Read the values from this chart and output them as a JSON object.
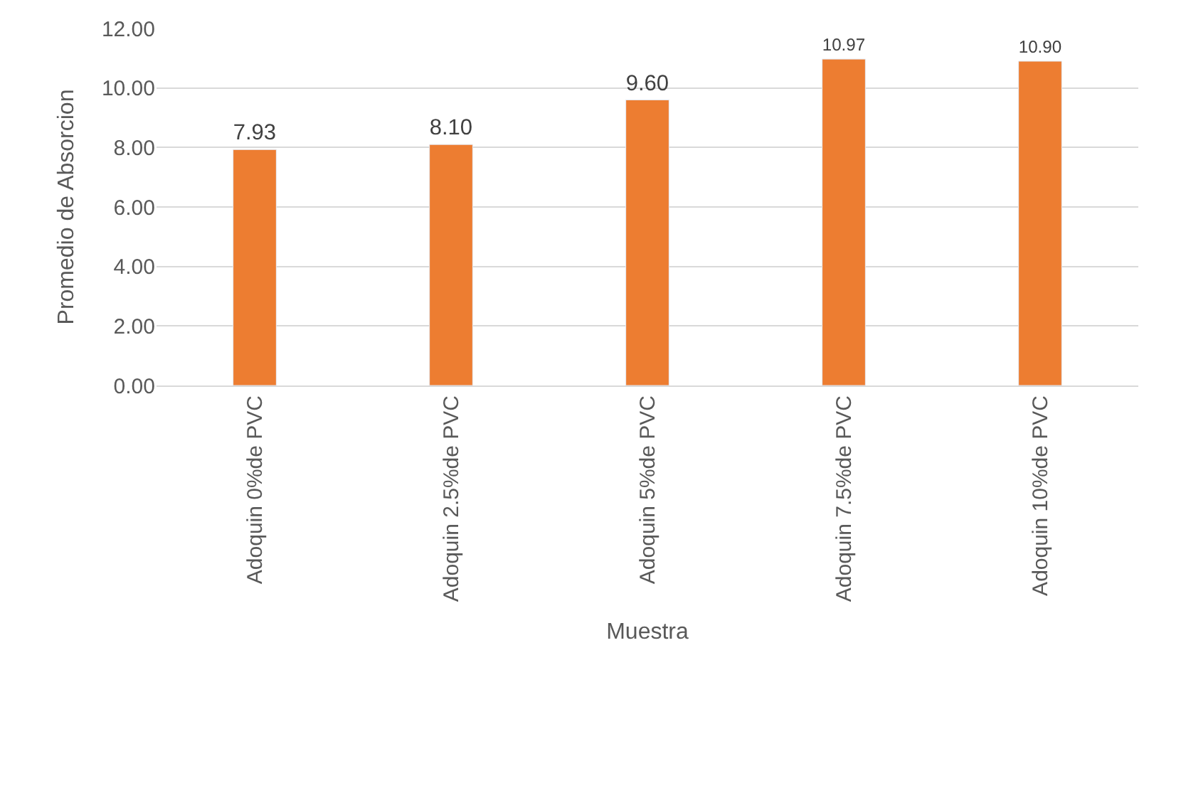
{
  "chart_data": {
    "type": "bar",
    "xlabel": "Muestra",
    "ylabel": "Promedio de Absorcion",
    "categories": [
      "Adoquin 0%de PVC",
      "Adoquin 2.5%de PVC",
      "Adoquin 5%de PVC",
      "Adoquin 7.5%de PVC",
      "Adoquin 10%de PVC"
    ],
    "values": [
      7.93,
      8.1,
      9.6,
      10.97,
      10.9
    ],
    "value_labels": [
      "7.93",
      "8.10",
      "9.60",
      "10.97",
      "10.90"
    ],
    "color": "#ed7d31",
    "ylim": [
      0,
      12
    ],
    "yticks": [
      {
        "value": 0,
        "label": "0.00"
      },
      {
        "value": 2,
        "label": "2.00"
      },
      {
        "value": 4,
        "label": "4.00"
      },
      {
        "value": 6,
        "label": "6.00"
      },
      {
        "value": 8,
        "label": "8.00"
      },
      {
        "value": 10,
        "label": "10.00"
      },
      {
        "value": 12,
        "label": "12.00"
      }
    ],
    "grid": "y",
    "legend": false
  }
}
